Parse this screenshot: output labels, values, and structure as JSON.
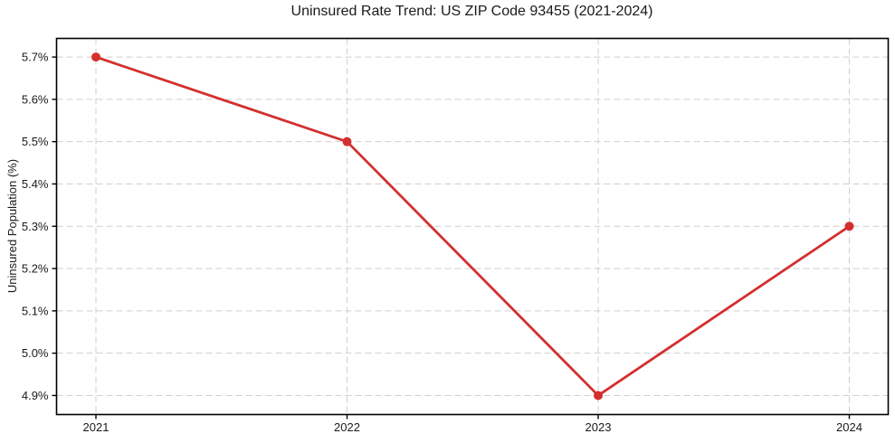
{
  "chart_data": {
    "type": "line",
    "title": "Uninsured Rate Trend: US ZIP Code 93455 (2021-2024)",
    "xlabel": "",
    "ylabel": "Uninsured Population (%)",
    "categories": [
      "2021",
      "2022",
      "2023",
      "2024"
    ],
    "series": [
      {
        "name": "Uninsured Population (%)",
        "values": [
          5.7,
          5.5,
          4.9,
          5.3
        ],
        "color": "#d32f2f",
        "marker": "circle",
        "line_width": 2.8,
        "marker_radius": 5
      }
    ],
    "y_ticks": [
      4.9,
      5.0,
      5.1,
      5.2,
      5.3,
      5.4,
      5.5,
      5.6,
      5.7
    ],
    "y_tick_labels": [
      "4.9%",
      "5.0%",
      "5.1%",
      "5.2%",
      "5.3%",
      "5.4%",
      "5.5%",
      "5.6%",
      "5.7%"
    ],
    "ylim": [
      4.855,
      5.744
    ],
    "grid": "dashed-both-axes",
    "grid_color": "#cfcfcf",
    "axis_color": "#000000",
    "text_color": "#1a1a1a",
    "background": "#ffffff",
    "legend": "none"
  }
}
